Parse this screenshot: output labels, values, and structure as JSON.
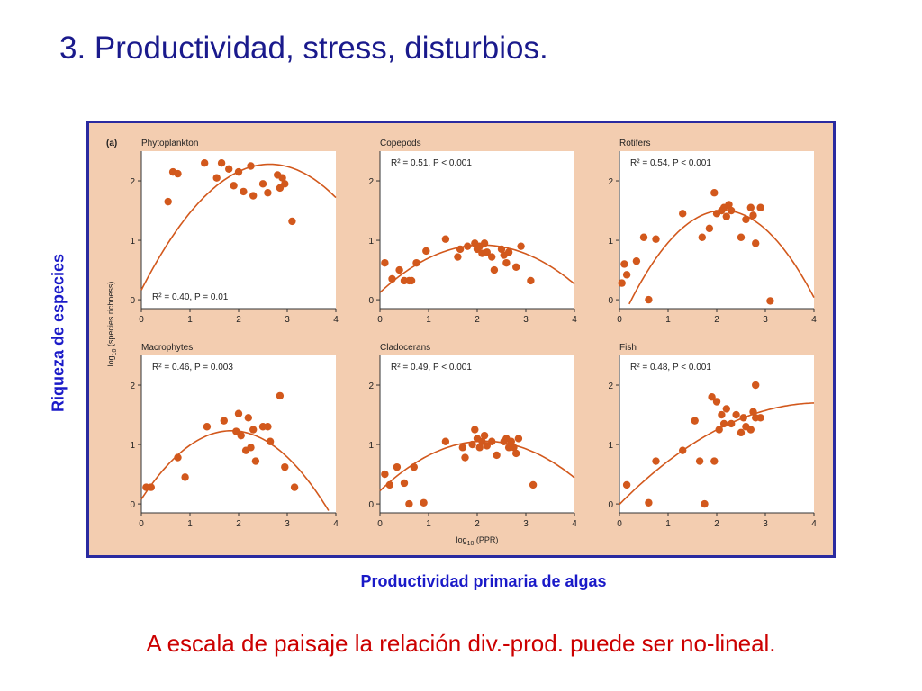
{
  "slide": {
    "title": "3.  Productividad, stress, disturbios.",
    "y_label_outer": "Riqueza de especies",
    "x_label_outer": "Productividad primaria de algas",
    "conclusion": "A escala de paisaje la relación div.-prod. puede ser no-lineal."
  },
  "colors": {
    "title": "#1a1a8c",
    "labels": "#1a1ac8",
    "conclusion": "#cc0000",
    "figure_bg": "#f3cdb0",
    "plot_bg": "#ffffff",
    "points": "#d2581c",
    "curve": "#d2581c",
    "border": "#2a2aa0"
  },
  "figure": {
    "panel_tag": "(a)",
    "y_axis_label": "log",
    "y_axis_sub": "10",
    "y_axis_label_rest": " (species richness)",
    "x_axis_label": "log",
    "x_axis_sub": "10",
    "x_axis_label_rest": " (PPR)"
  },
  "chart_data": [
    {
      "type": "scatter",
      "title": "Phytoplankton",
      "annotation": "R² = 0.40, P = 0.01",
      "annotation_position": "bottom-left",
      "xlim": [
        0,
        4
      ],
      "ylim": [
        -0.15,
        2.5
      ],
      "xticks": [
        "0",
        "1",
        "2",
        "3",
        "4"
      ],
      "yticks": [
        "0",
        "1",
        "2"
      ],
      "points": [
        [
          0.55,
          1.65
        ],
        [
          0.65,
          2.15
        ],
        [
          0.75,
          2.12
        ],
        [
          1.3,
          2.3
        ],
        [
          1.55,
          2.05
        ],
        [
          1.65,
          2.3
        ],
        [
          1.8,
          2.2
        ],
        [
          1.9,
          1.92
        ],
        [
          2.0,
          2.15
        ],
        [
          2.1,
          1.82
        ],
        [
          2.25,
          2.25
        ],
        [
          2.3,
          1.75
        ],
        [
          2.5,
          1.95
        ],
        [
          2.6,
          1.8
        ],
        [
          2.8,
          2.1
        ],
        [
          2.85,
          1.88
        ],
        [
          2.9,
          2.05
        ],
        [
          2.95,
          1.95
        ],
        [
          3.1,
          1.32
        ]
      ],
      "fit": [
        -0.3036,
        1.6029,
        0.1642
      ]
    },
    {
      "type": "scatter",
      "title": "Copepods",
      "annotation": "R² = 0.51, P < 0.001",
      "annotation_position": "top-left",
      "xlim": [
        0,
        4
      ],
      "ylim": [
        -0.15,
        2.5
      ],
      "xticks": [
        "0",
        "1",
        "2",
        "3",
        "4"
      ],
      "yticks": [
        "0",
        "1",
        "2"
      ],
      "points": [
        [
          0.1,
          0.62
        ],
        [
          0.25,
          0.35
        ],
        [
          0.4,
          0.5
        ],
        [
          0.5,
          0.32
        ],
        [
          0.6,
          0.32
        ],
        [
          0.65,
          0.32
        ],
        [
          0.75,
          0.62
        ],
        [
          0.95,
          0.82
        ],
        [
          1.35,
          1.02
        ],
        [
          1.6,
          0.72
        ],
        [
          1.65,
          0.85
        ],
        [
          1.8,
          0.9
        ],
        [
          1.95,
          0.95
        ],
        [
          2.0,
          0.85
        ],
        [
          2.05,
          0.9
        ],
        [
          2.1,
          0.78
        ],
        [
          2.15,
          0.95
        ],
        [
          2.2,
          0.8
        ],
        [
          2.3,
          0.72
        ],
        [
          2.35,
          0.5
        ],
        [
          2.5,
          0.85
        ],
        [
          2.55,
          0.75
        ],
        [
          2.6,
          0.62
        ],
        [
          2.65,
          0.8
        ],
        [
          2.8,
          0.55
        ],
        [
          2.9,
          0.9
        ],
        [
          3.1,
          0.32
        ]
      ],
      "fit": [
        -0.1813,
        0.7612,
        0.1211
      ]
    },
    {
      "type": "scatter",
      "title": "Rotifers",
      "annotation": "R² = 0.54, P < 0.001",
      "annotation_position": "top-left",
      "xlim": [
        0,
        4
      ],
      "ylim": [
        -0.15,
        2.5
      ],
      "xticks": [
        "0",
        "1",
        "2",
        "3",
        "4"
      ],
      "yticks": [
        "0",
        "1",
        "2"
      ],
      "points": [
        [
          0.05,
          0.28
        ],
        [
          0.1,
          0.6
        ],
        [
          0.15,
          0.42
        ],
        [
          0.35,
          0.65
        ],
        [
          0.5,
          1.05
        ],
        [
          0.6,
          0.0
        ],
        [
          0.75,
          1.02
        ],
        [
          1.3,
          1.45
        ],
        [
          1.7,
          1.05
        ],
        [
          1.85,
          1.2
        ],
        [
          1.95,
          1.8
        ],
        [
          2.0,
          1.45
        ],
        [
          2.1,
          1.5
        ],
        [
          2.15,
          1.55
        ],
        [
          2.2,
          1.4
        ],
        [
          2.25,
          1.6
        ],
        [
          2.3,
          1.5
        ],
        [
          2.5,
          1.05
        ],
        [
          2.6,
          1.35
        ],
        [
          2.7,
          1.55
        ],
        [
          2.75,
          1.42
        ],
        [
          2.8,
          0.95
        ],
        [
          2.9,
          1.55
        ],
        [
          3.1,
          -0.02
        ]
      ],
      "fit": [
        -0.4209,
        1.7969,
        -0.4151
      ]
    },
    {
      "type": "scatter",
      "title": "Macrophytes",
      "annotation": "R² = 0.46, P = 0.003",
      "annotation_position": "top-left",
      "xlim": [
        0,
        4
      ],
      "ylim": [
        -0.15,
        2.5
      ],
      "xticks": [
        "0",
        "1",
        "2",
        "3",
        "4"
      ],
      "yticks": [
        "0",
        "1",
        "2"
      ],
      "points": [
        [
          0.1,
          0.28
        ],
        [
          0.2,
          0.28
        ],
        [
          0.75,
          0.78
        ],
        [
          0.9,
          0.45
        ],
        [
          1.35,
          1.3
        ],
        [
          1.7,
          1.4
        ],
        [
          1.95,
          1.22
        ],
        [
          2.0,
          1.52
        ],
        [
          2.05,
          1.15
        ],
        [
          2.15,
          0.9
        ],
        [
          2.2,
          1.45
        ],
        [
          2.25,
          0.95
        ],
        [
          2.3,
          1.25
        ],
        [
          2.35,
          0.72
        ],
        [
          2.5,
          1.3
        ],
        [
          2.6,
          1.3
        ],
        [
          2.65,
          1.05
        ],
        [
          2.85,
          1.82
        ],
        [
          2.95,
          0.62
        ],
        [
          3.15,
          0.28
        ]
      ],
      "fit": [
        -0.3363,
        1.2448,
        0.0797
      ]
    },
    {
      "type": "scatter",
      "title": "Cladocerans",
      "annotation": "R² = 0.49, P < 0.001",
      "annotation_position": "top-left",
      "xlim": [
        0,
        4
      ],
      "ylim": [
        -0.15,
        2.5
      ],
      "xticks": [
        "0",
        "1",
        "2",
        "3",
        "4"
      ],
      "yticks": [
        "0",
        "1",
        "2"
      ],
      "points": [
        [
          0.1,
          0.5
        ],
        [
          0.2,
          0.32
        ],
        [
          0.35,
          0.62
        ],
        [
          0.5,
          0.35
        ],
        [
          0.6,
          0.0
        ],
        [
          0.7,
          0.62
        ],
        [
          0.9,
          0.02
        ],
        [
          1.35,
          1.05
        ],
        [
          1.7,
          0.95
        ],
        [
          1.75,
          0.78
        ],
        [
          1.9,
          1.0
        ],
        [
          1.95,
          1.25
        ],
        [
          2.0,
          1.1
        ],
        [
          2.05,
          0.95
        ],
        [
          2.1,
          1.05
        ],
        [
          2.15,
          1.15
        ],
        [
          2.2,
          0.98
        ],
        [
          2.3,
          1.05
        ],
        [
          2.4,
          0.82
        ],
        [
          2.55,
          1.05
        ],
        [
          2.6,
          1.1
        ],
        [
          2.65,
          0.95
        ],
        [
          2.7,
          1.05
        ],
        [
          2.75,
          0.95
        ],
        [
          2.8,
          0.85
        ],
        [
          2.85,
          1.1
        ],
        [
          3.15,
          0.32
        ]
      ],
      "fit": [
        -0.1802,
        0.7758,
        0.2207
      ]
    },
    {
      "type": "scatter",
      "title": "Fish",
      "annotation": "R² = 0.48, P < 0.001",
      "annotation_position": "top-left",
      "xlim": [
        0,
        4
      ],
      "ylim": [
        -0.15,
        2.5
      ],
      "xticks": [
        "0",
        "1",
        "2",
        "3",
        "4"
      ],
      "yticks": [
        "0",
        "1",
        "2"
      ],
      "points": [
        [
          0.15,
          0.32
        ],
        [
          0.6,
          0.02
        ],
        [
          0.75,
          0.72
        ],
        [
          1.3,
          0.9
        ],
        [
          1.55,
          1.4
        ],
        [
          1.65,
          0.72
        ],
        [
          1.75,
          0.0
        ],
        [
          1.9,
          1.8
        ],
        [
          1.95,
          0.72
        ],
        [
          2.0,
          1.72
        ],
        [
          2.05,
          1.25
        ],
        [
          2.1,
          1.5
        ],
        [
          2.15,
          1.35
        ],
        [
          2.2,
          1.6
        ],
        [
          2.3,
          1.35
        ],
        [
          2.4,
          1.5
        ],
        [
          2.5,
          1.2
        ],
        [
          2.55,
          1.45
        ],
        [
          2.6,
          1.3
        ],
        [
          2.7,
          1.25
        ],
        [
          2.75,
          1.55
        ],
        [
          2.8,
          1.45
        ],
        [
          2.8,
          2.0
        ],
        [
          2.9,
          1.45
        ]
      ],
      "fit": [
        -0.1001,
        0.8266,
        -0.0064
      ]
    }
  ]
}
